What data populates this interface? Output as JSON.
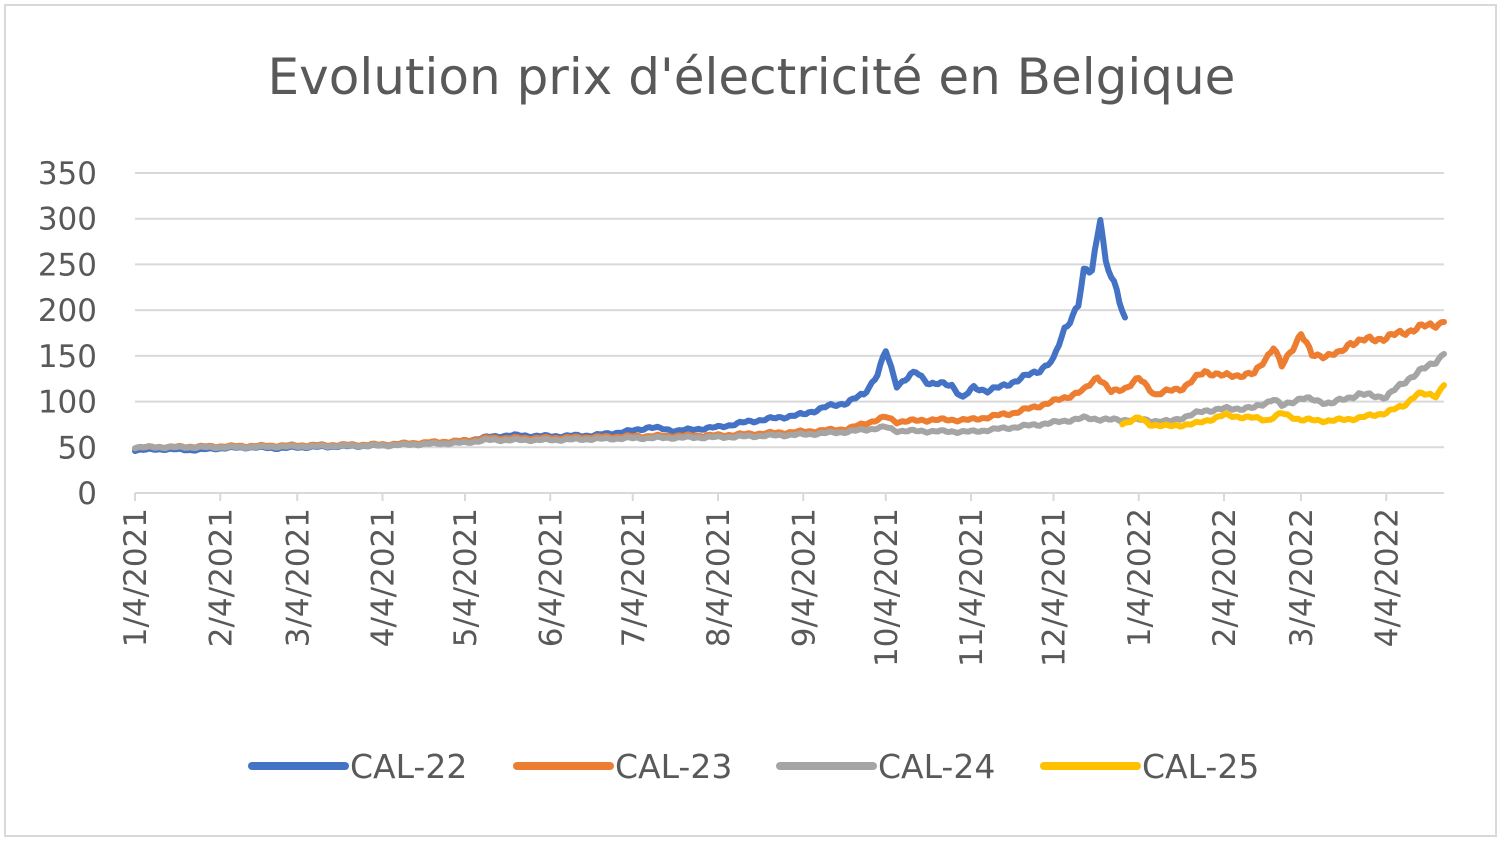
{
  "chart_data": {
    "type": "line",
    "title": "Evolution prix d'électricité en Belgique",
    "xlabel": "",
    "ylabel": "",
    "ylim": [
      0,
      350
    ],
    "yticks": [
      0,
      50,
      100,
      150,
      200,
      250,
      300,
      350
    ],
    "xlim": [
      "2021-01-04",
      "2022-04-25"
    ],
    "xticks": [
      {
        "date": "2021-01-04",
        "label": "1/4/2021"
      },
      {
        "date": "2021-02-04",
        "label": "2/4/2021"
      },
      {
        "date": "2021-03-04",
        "label": "3/4/2021"
      },
      {
        "date": "2021-04-04",
        "label": "4/4/2021"
      },
      {
        "date": "2021-05-04",
        "label": "5/4/2021"
      },
      {
        "date": "2021-06-04",
        "label": "6/4/2021"
      },
      {
        "date": "2021-07-04",
        "label": "7/4/2021"
      },
      {
        "date": "2021-08-04",
        "label": "8/4/2021"
      },
      {
        "date": "2021-09-04",
        "label": "9/4/2021"
      },
      {
        "date": "2021-10-04",
        "label": "10/4/2021"
      },
      {
        "date": "2021-11-04",
        "label": "11/4/2021"
      },
      {
        "date": "2021-12-04",
        "label": "12/4/2021"
      },
      {
        "date": "2022-01-04",
        "label": "1/4/2022"
      },
      {
        "date": "2022-02-04",
        "label": "2/4/2022"
      },
      {
        "date": "2022-03-04",
        "label": "3/4/2022"
      },
      {
        "date": "2022-04-04",
        "label": "4/4/2022"
      }
    ],
    "grid": "horizontal",
    "legend_position": "bottom",
    "series": [
      {
        "name": "CAL-22",
        "color": "#4472C4",
        "points": [
          [
            "2021-01-04",
            47
          ],
          [
            "2021-01-15",
            48
          ],
          [
            "2021-01-25",
            47
          ],
          [
            "2021-02-04",
            49
          ],
          [
            "2021-02-15",
            50
          ],
          [
            "2021-02-25",
            49
          ],
          [
            "2021-03-04",
            50
          ],
          [
            "2021-03-20",
            51
          ],
          [
            "2021-04-04",
            52
          ],
          [
            "2021-04-20",
            54
          ],
          [
            "2021-05-04",
            57
          ],
          [
            "2021-05-12",
            61
          ],
          [
            "2021-05-20",
            63
          ],
          [
            "2021-06-04",
            62
          ],
          [
            "2021-06-20",
            63
          ],
          [
            "2021-07-04",
            68
          ],
          [
            "2021-07-10",
            72
          ],
          [
            "2021-07-20",
            68
          ],
          [
            "2021-08-04",
            72
          ],
          [
            "2021-08-15",
            78
          ],
          [
            "2021-08-25",
            82
          ],
          [
            "2021-09-04",
            86
          ],
          [
            "2021-09-12",
            94
          ],
          [
            "2021-09-20",
            99
          ],
          [
            "2021-09-26",
            108
          ],
          [
            "2021-10-01",
            130
          ],
          [
            "2021-10-04",
            155
          ],
          [
            "2021-10-08",
            118
          ],
          [
            "2021-10-15",
            132
          ],
          [
            "2021-10-20",
            120
          ],
          [
            "2021-10-28",
            118
          ],
          [
            "2021-11-01",
            104
          ],
          [
            "2021-11-05",
            115
          ],
          [
            "2021-11-10",
            112
          ],
          [
            "2021-11-15",
            116
          ],
          [
            "2021-11-22",
            125
          ],
          [
            "2021-11-28",
            133
          ],
          [
            "2021-12-04",
            145
          ],
          [
            "2021-12-08",
            180
          ],
          [
            "2021-12-13",
            205
          ],
          [
            "2021-12-15",
            240
          ],
          [
            "2021-12-18",
            245
          ],
          [
            "2021-12-21",
            305
          ],
          [
            "2021-12-23",
            250
          ],
          [
            "2021-12-27",
            220
          ],
          [
            "2021-12-30",
            192
          ]
        ]
      },
      {
        "name": "CAL-23",
        "color": "#ED7D31",
        "points": [
          [
            "2021-01-04",
            50
          ],
          [
            "2021-02-04",
            51
          ],
          [
            "2021-03-04",
            52
          ],
          [
            "2021-04-04",
            53
          ],
          [
            "2021-05-04",
            57
          ],
          [
            "2021-05-12",
            60
          ],
          [
            "2021-06-04",
            60
          ],
          [
            "2021-07-04",
            62
          ],
          [
            "2021-08-04",
            63
          ],
          [
            "2021-09-04",
            67
          ],
          [
            "2021-09-20",
            70
          ],
          [
            "2021-10-04",
            83
          ],
          [
            "2021-10-08",
            78
          ],
          [
            "2021-10-20",
            80
          ],
          [
            "2021-11-04",
            80
          ],
          [
            "2021-11-20",
            88
          ],
          [
            "2021-12-04",
            100
          ],
          [
            "2021-12-15",
            112
          ],
          [
            "2021-12-20",
            128
          ],
          [
            "2021-12-25",
            110
          ],
          [
            "2021-12-30",
            115
          ],
          [
            "2022-01-04",
            125
          ],
          [
            "2022-01-10",
            108
          ],
          [
            "2022-01-20",
            115
          ],
          [
            "2022-01-28",
            133
          ],
          [
            "2022-02-04",
            128
          ],
          [
            "2022-02-15",
            130
          ],
          [
            "2022-02-22",
            160
          ],
          [
            "2022-02-25",
            138
          ],
          [
            "2022-03-04",
            175
          ],
          [
            "2022-03-08",
            150
          ],
          [
            "2022-03-18",
            152
          ],
          [
            "2022-03-22",
            165
          ],
          [
            "2022-04-04",
            170
          ],
          [
            "2022-04-15",
            180
          ],
          [
            "2022-04-25",
            187
          ]
        ]
      },
      {
        "name": "CAL-24",
        "color": "#A5A5A5",
        "points": [
          [
            "2021-01-04",
            50
          ],
          [
            "2021-02-04",
            50
          ],
          [
            "2021-03-04",
            51
          ],
          [
            "2021-04-04",
            52
          ],
          [
            "2021-05-04",
            55
          ],
          [
            "2021-05-12",
            58
          ],
          [
            "2021-06-04",
            58
          ],
          [
            "2021-07-04",
            60
          ],
          [
            "2021-08-04",
            61
          ],
          [
            "2021-09-04",
            64
          ],
          [
            "2021-09-20",
            67
          ],
          [
            "2021-10-04",
            72
          ],
          [
            "2021-10-08",
            68
          ],
          [
            "2021-11-04",
            67
          ],
          [
            "2021-11-20",
            72
          ],
          [
            "2021-12-04",
            77
          ],
          [
            "2021-12-15",
            82
          ],
          [
            "2021-12-25",
            80
          ],
          [
            "2022-01-04",
            80
          ],
          [
            "2022-01-15",
            78
          ],
          [
            "2022-01-28",
            90
          ],
          [
            "2022-02-04",
            92
          ],
          [
            "2022-02-15",
            93
          ],
          [
            "2022-02-22",
            103
          ],
          [
            "2022-02-25",
            95
          ],
          [
            "2022-03-04",
            104
          ],
          [
            "2022-03-15",
            98
          ],
          [
            "2022-03-25",
            108
          ],
          [
            "2022-04-04",
            105
          ],
          [
            "2022-04-12",
            125
          ],
          [
            "2022-04-20",
            140
          ],
          [
            "2022-04-25",
            152
          ]
        ]
      },
      {
        "name": "CAL-25",
        "color": "#FFC000",
        "points": [
          [
            "2021-12-29",
            76
          ],
          [
            "2022-01-04",
            82
          ],
          [
            "2022-01-08",
            75
          ],
          [
            "2022-01-15",
            73
          ],
          [
            "2022-01-25",
            76
          ],
          [
            "2022-02-04",
            85
          ],
          [
            "2022-02-15",
            82
          ],
          [
            "2022-02-20",
            80
          ],
          [
            "2022-02-25",
            87
          ],
          [
            "2022-03-04",
            80
          ],
          [
            "2022-03-15",
            79
          ],
          [
            "2022-03-25",
            82
          ],
          [
            "2022-04-04",
            88
          ],
          [
            "2022-04-10",
            95
          ],
          [
            "2022-04-15",
            108
          ],
          [
            "2022-04-22",
            107
          ],
          [
            "2022-04-25",
            118
          ]
        ]
      }
    ]
  }
}
